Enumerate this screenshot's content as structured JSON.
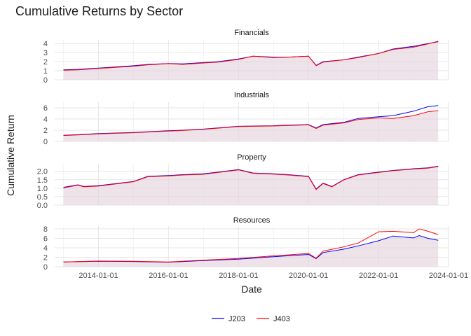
{
  "chart_data": {
    "type": "line",
    "title": "Cumulative Returns by Sector",
    "xlabel": "Date",
    "ylabel": "Cumulative Return",
    "x_range": [
      "2012-10-01",
      "2024-01-01"
    ],
    "x_ticks": [
      "2014-01-01",
      "2016-01-01",
      "2018-01-01",
      "2020-01-01",
      "2022-01-01",
      "2024-01-01"
    ],
    "x_tick_labels": [
      "2014-01-01",
      "2016-01-01",
      "2018-01-01",
      "2020-01-01",
      "2022-01-01",
      "2024-01-01"
    ],
    "grid": true,
    "area_fill": true,
    "legend_position": "bottom",
    "legend": [
      {
        "name": "J203",
        "color": "#0000ff"
      },
      {
        "name": "J403",
        "color": "#ff0000"
      }
    ],
    "panels": [
      {
        "title": "Financials",
        "ylim": [
          0,
          4.4
        ],
        "y_ticks": [
          0,
          1,
          2,
          3,
          4
        ],
        "y_tick_labels": [
          "0",
          "1",
          "2",
          "3",
          "4"
        ],
        "series": [
          {
            "name": "J203",
            "color": "#0000ff",
            "x": [
              "2013-01-01",
              "2013-06-01",
              "2014-01-01",
              "2014-06-01",
              "2015-01-01",
              "2015-06-01",
              "2016-01-01",
              "2016-06-01",
              "2017-01-01",
              "2017-06-01",
              "2018-01-01",
              "2018-06-01",
              "2019-01-01",
              "2019-06-01",
              "2020-01-01",
              "2020-03-20",
              "2020-06-01",
              "2021-01-01",
              "2021-06-01",
              "2022-01-01",
              "2022-06-01",
              "2023-01-01",
              "2023-06-01",
              "2023-09-15"
            ],
            "y": [
              1.1,
              1.15,
              1.3,
              1.4,
              1.55,
              1.7,
              1.8,
              1.75,
              1.9,
              2.0,
              2.3,
              2.6,
              2.5,
              2.5,
              2.6,
              1.6,
              2.0,
              2.2,
              2.5,
              2.9,
              3.4,
              3.7,
              4.0,
              4.2
            ]
          },
          {
            "name": "J403",
            "color": "#ff0000",
            "x": [
              "2013-01-01",
              "2013-06-01",
              "2014-01-01",
              "2014-06-01",
              "2015-01-01",
              "2015-06-01",
              "2016-01-01",
              "2016-06-01",
              "2017-01-01",
              "2017-06-01",
              "2018-01-01",
              "2018-06-01",
              "2019-01-01",
              "2019-06-01",
              "2020-01-01",
              "2020-03-20",
              "2020-06-01",
              "2021-01-01",
              "2021-06-01",
              "2022-01-01",
              "2022-06-01",
              "2023-01-01",
              "2023-06-01",
              "2023-09-15"
            ],
            "y": [
              1.05,
              1.1,
              1.25,
              1.35,
              1.5,
              1.65,
              1.78,
              1.7,
              1.85,
              1.95,
              2.25,
              2.6,
              2.45,
              2.5,
              2.6,
              1.55,
              1.95,
              2.2,
              2.45,
              2.9,
              3.35,
              3.6,
              3.95,
              4.25
            ]
          }
        ]
      },
      {
        "title": "Industrials",
        "ylim": [
          0,
          7
        ],
        "y_ticks": [
          0,
          2,
          4,
          6
        ],
        "y_tick_labels": [
          "0",
          "2",
          "4",
          "6"
        ],
        "series": [
          {
            "name": "J203",
            "color": "#0000ff",
            "x": [
              "2013-01-01",
              "2013-06-01",
              "2014-01-01",
              "2015-01-01",
              "2016-01-01",
              "2016-06-01",
              "2017-01-01",
              "2018-01-01",
              "2019-01-01",
              "2019-06-01",
              "2020-01-01",
              "2020-03-20",
              "2020-06-01",
              "2021-01-01",
              "2021-06-01",
              "2022-01-01",
              "2022-06-01",
              "2023-01-01",
              "2023-06-01",
              "2023-09-15"
            ],
            "y": [
              1.1,
              1.2,
              1.4,
              1.6,
              1.9,
              2.0,
              2.2,
              2.7,
              2.8,
              2.9,
              3.0,
              2.4,
              3.0,
              3.4,
              4.1,
              4.4,
              4.6,
              5.4,
              6.2,
              6.4
            ]
          },
          {
            "name": "J403",
            "color": "#ff0000",
            "x": [
              "2013-01-01",
              "2013-06-01",
              "2014-01-01",
              "2015-01-01",
              "2016-01-01",
              "2016-06-01",
              "2017-01-01",
              "2018-01-01",
              "2019-01-01",
              "2019-06-01",
              "2020-01-01",
              "2020-03-20",
              "2020-06-01",
              "2021-01-01",
              "2021-06-01",
              "2022-01-01",
              "2022-06-01",
              "2023-01-01",
              "2023-06-01",
              "2023-09-15"
            ],
            "y": [
              1.05,
              1.15,
              1.35,
              1.55,
              1.85,
              1.95,
              2.15,
              2.65,
              2.75,
              2.85,
              2.95,
              2.3,
              2.9,
              3.3,
              3.9,
              4.2,
              4.1,
              4.6,
              5.3,
              5.5
            ]
          }
        ]
      },
      {
        "title": "Property",
        "ylim": [
          0,
          2.4
        ],
        "y_ticks": [
          0,
          0.5,
          1,
          1.5,
          2
        ],
        "y_tick_labels": [
          "0.0",
          "0.5",
          "1.0",
          "1.5",
          "2.0"
        ],
        "series": [
          {
            "name": "J203",
            "color": "#0000ff",
            "x": [
              "2013-01-01",
              "2013-06-01",
              "2013-08-01",
              "2014-01-01",
              "2015-01-01",
              "2015-06-01",
              "2016-01-01",
              "2016-06-01",
              "2017-01-01",
              "2017-06-01",
              "2018-01-01",
              "2018-06-01",
              "2019-01-01",
              "2019-06-01",
              "2020-01-01",
              "2020-03-20",
              "2020-06-01",
              "2020-09-01",
              "2021-01-01",
              "2021-06-01",
              "2022-01-01",
              "2022-06-01",
              "2023-01-01",
              "2023-06-01",
              "2023-09-15"
            ],
            "y": [
              1.05,
              1.2,
              1.1,
              1.15,
              1.4,
              1.7,
              1.75,
              1.8,
              1.85,
              1.95,
              2.1,
              1.9,
              1.85,
              1.8,
              1.7,
              0.95,
              1.3,
              1.1,
              1.5,
              1.8,
              1.95,
              2.05,
              2.15,
              2.2,
              2.3
            ]
          },
          {
            "name": "J403",
            "color": "#ff0000",
            "x": [
              "2013-01-01",
              "2013-06-01",
              "2013-08-01",
              "2014-01-01",
              "2015-01-01",
              "2015-06-01",
              "2016-01-01",
              "2016-06-01",
              "2017-01-01",
              "2017-06-01",
              "2018-01-01",
              "2018-06-01",
              "2019-01-01",
              "2019-06-01",
              "2020-01-01",
              "2020-03-20",
              "2020-06-01",
              "2020-09-01",
              "2021-01-01",
              "2021-06-01",
              "2022-01-01",
              "2022-06-01",
              "2023-01-01",
              "2023-06-01",
              "2023-09-15"
            ],
            "y": [
              1.02,
              1.18,
              1.08,
              1.12,
              1.38,
              1.68,
              1.72,
              1.78,
              1.82,
              1.93,
              2.08,
              1.88,
              1.83,
              1.78,
              1.68,
              0.92,
              1.28,
              1.08,
              1.48,
              1.78,
              1.93,
              2.03,
              2.13,
              2.18,
              2.28
            ]
          }
        ]
      },
      {
        "title": "Resources",
        "ylim": [
          0,
          8.6
        ],
        "y_ticks": [
          0,
          2,
          4,
          6,
          8
        ],
        "y_tick_labels": [
          "0",
          "2",
          "4",
          "6",
          "8"
        ],
        "series": [
          {
            "name": "J203",
            "color": "#0000ff",
            "x": [
              "2013-01-01",
              "2014-01-01",
              "2015-01-01",
              "2016-01-01",
              "2017-01-01",
              "2018-01-01",
              "2019-01-01",
              "2020-01-01",
              "2020-03-20",
              "2020-06-01",
              "2021-01-01",
              "2021-06-01",
              "2022-01-01",
              "2022-06-01",
              "2023-01-01",
              "2023-03-01",
              "2023-06-01",
              "2023-09-15"
            ],
            "y": [
              1.0,
              1.15,
              1.1,
              0.95,
              1.3,
              1.6,
              2.1,
              2.6,
              1.7,
              3.0,
              3.7,
              4.4,
              5.5,
              6.5,
              6.1,
              6.6,
              6.0,
              5.6
            ]
          },
          {
            "name": "J403",
            "color": "#ff0000",
            "x": [
              "2013-01-01",
              "2014-01-01",
              "2015-01-01",
              "2016-01-01",
              "2017-01-01",
              "2018-01-01",
              "2019-01-01",
              "2020-01-01",
              "2020-03-20",
              "2020-06-01",
              "2021-01-01",
              "2021-06-01",
              "2022-01-01",
              "2022-06-01",
              "2023-01-01",
              "2023-03-01",
              "2023-06-01",
              "2023-09-15"
            ],
            "y": [
              1.0,
              1.2,
              1.15,
              1.0,
              1.4,
              1.75,
              2.3,
              2.8,
              1.8,
              3.3,
              4.2,
              5.0,
              7.4,
              7.5,
              7.2,
              8.0,
              7.5,
              6.8
            ]
          }
        ]
      }
    ]
  }
}
